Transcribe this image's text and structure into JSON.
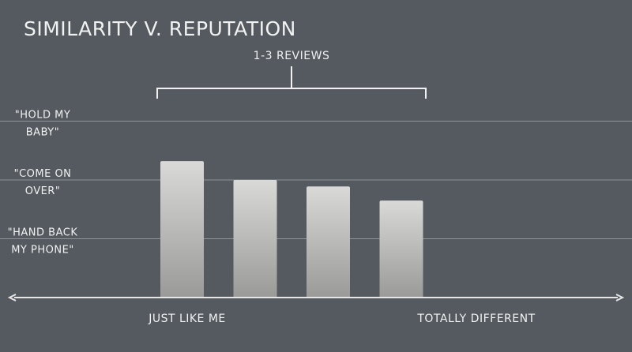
{
  "chart_data": {
    "type": "bar",
    "title": "SIMILARITY V. REPUTATION",
    "bracket_label": "1-3 REVIEWS",
    "x_axis": {
      "left_label": "JUST LIKE ME",
      "right_label": "TOTALLY DIFFERENT"
    },
    "y_levels": [
      {
        "value": 1,
        "label_lines": [
          "\"HAND BACK",
          "MY PHONE\""
        ]
      },
      {
        "value": 2,
        "label_lines": [
          "\"COME ON",
          "OVER\""
        ]
      },
      {
        "value": 3,
        "label_lines": [
          "\"HOLD MY",
          "BABY\""
        ]
      }
    ],
    "ylim": [
      0,
      3
    ],
    "grid": true,
    "values": [
      2.32,
      2.0,
      1.89,
      1.65
    ],
    "colors": {
      "background": "#545a5f",
      "gridline": "#8d9397",
      "axis": "#e6e6e6",
      "bar_top": "#d9d9d7",
      "bar_bottom": "#9a9a98",
      "text": "#f1f1f1"
    }
  }
}
